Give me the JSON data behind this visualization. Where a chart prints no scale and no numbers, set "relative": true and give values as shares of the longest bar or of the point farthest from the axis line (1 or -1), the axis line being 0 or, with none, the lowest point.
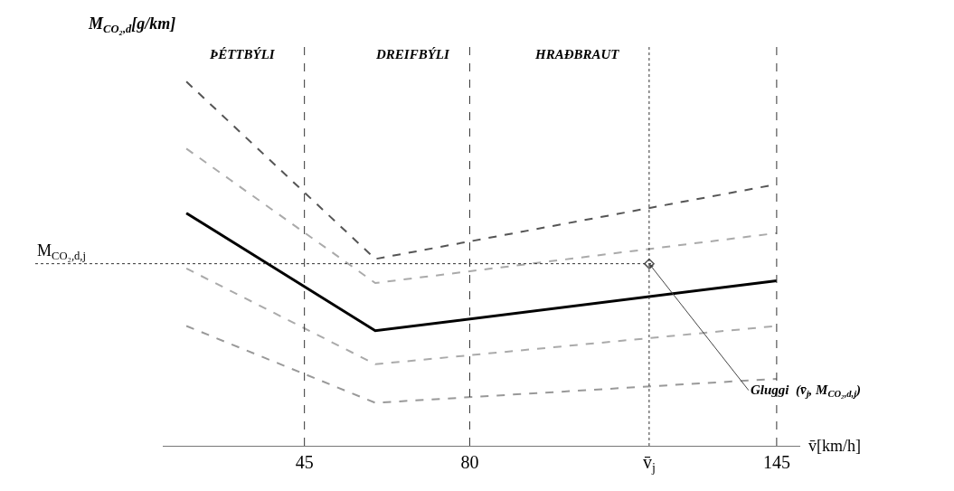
{
  "chart_data": {
    "type": "line",
    "relative": true,
    "xlabel": "v̄[km/h]",
    "ylabel": "M$_{CO₂,d}$[g/km]",
    "x": [
      20,
      60,
      145
    ],
    "xlim": [
      15,
      150
    ],
    "xticks": [
      45,
      80,
      {
        "value": 118,
        "label": "v̄$_{j}$"
      },
      145
    ],
    "series": [
      {
        "color": "#555555",
        "values": [
          1.0,
          0.513,
          0.718
        ]
      },
      {
        "color": "#aaaaaa",
        "values": [
          0.816,
          0.447,
          0.584
        ]
      },
      {
        "color": "#000000",
        "line_style": "solid",
        "values": [
          0.639,
          0.316,
          0.453
        ]
      },
      {
        "color": "#aaaaaa",
        "values": [
          0.487,
          0.224,
          0.329
        ]
      },
      {
        "color": "#999999",
        "values": [
          0.329,
          0.118,
          0.184
        ]
      },
      {
        "type": "scatter",
        "marker": "diamond",
        "color": "#555555",
        "x": [
          118
        ],
        "values": [
          0.5
        ]
      }
    ],
    "ref_lines": [
      {
        "axis": "x",
        "value": 45,
        "line_style": "dashed",
        "color": "#333333"
      },
      {
        "axis": "x",
        "value": 80,
        "line_style": "dashed",
        "color": "#333333"
      },
      {
        "axis": "x",
        "value": 145,
        "line_style": "dashed",
        "color": "#333333"
      },
      {
        "axis": "x",
        "value": 118,
        "line_style": "dotted",
        "color": "#333333"
      },
      {
        "axis": "y",
        "value": 0.5,
        "line_style": "dotted",
        "color": "#333333",
        "label": "M$_{CO₂,d,j}$"
      }
    ],
    "annotations": [
      "ÞÉTTBÝLI",
      "DREIFBÝLI",
      "HRAÐBRAUT",
      {
        "text": "Gluggi  (v̄$_{j}$, M$_{CO₂,d,j}$)",
        "x": 118,
        "y": 0.5
      }
    ],
    "line_style": "dashed",
    "marker": "none",
    "legend": false,
    "grid": false
  }
}
